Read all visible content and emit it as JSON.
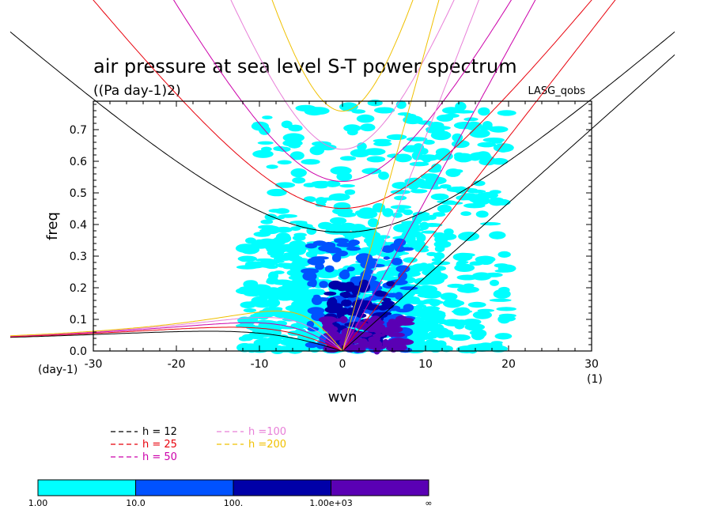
{
  "chart_data": {
    "type": "heatmap",
    "title": "air pressure at sea level S-T power spectrum",
    "subtitle": "((Pa day-1)2)",
    "corner_label": "LASG_qobs",
    "xlabel": "wvn",
    "ylabel": "freq",
    "x_unit": "(1)",
    "y_unit": "(day-1)",
    "xlim": [
      -30,
      30
    ],
    "ylim": [
      0,
      0.79
    ],
    "xticks": [
      -30,
      -20,
      -10,
      0,
      10,
      20,
      30
    ],
    "xtick_labels": [
      "-30",
      "-20",
      "-10",
      "0",
      "10",
      "20",
      "30"
    ],
    "yticks": [
      0,
      0.1,
      0.2,
      0.3,
      0.4,
      0.5,
      0.6,
      0.7
    ],
    "ytick_labels": [
      "0.0",
      "0.1",
      "0.2",
      "0.3",
      "0.4",
      "0.5",
      "0.6",
      "0.7"
    ],
    "dispersion_curves": [
      {
        "label": "h = 12",
        "h": 12,
        "color": "#000000"
      },
      {
        "label": "h = 25",
        "h": 25,
        "color": "#e8000b"
      },
      {
        "label": "h = 50",
        "h": 50,
        "color": "#cc00aa"
      },
      {
        "label": "h =100",
        "h": 100,
        "color": "#e87fd8"
      },
      {
        "label": "h =200",
        "h": 200,
        "color": "#f0c000"
      }
    ],
    "colorbar": {
      "labels": [
        "1.00",
        "10.0",
        "100.",
        "1.00e+03",
        "∞"
      ],
      "colors": [
        "#00ffff",
        "#0052ff",
        "#0000a8",
        "#5a00b4"
      ]
    },
    "power_field_regions": [
      {
        "wvn": [
          -2,
          8
        ],
        "freq": [
          0.0,
          0.1
        ],
        "level": 4
      },
      {
        "wvn": [
          -1.5,
          6
        ],
        "freq": [
          0.02,
          0.22
        ],
        "level": 3
      },
      {
        "wvn": [
          -4,
          8
        ],
        "freq": [
          0.0,
          0.35
        ],
        "level": 2
      },
      {
        "wvn": [
          -12,
          12
        ],
        "freq": [
          0.0,
          0.4
        ],
        "level": 1
      },
      {
        "wvn": [
          -10,
          20
        ],
        "freq": [
          0.0,
          0.8
        ],
        "level": 1
      }
    ]
  }
}
